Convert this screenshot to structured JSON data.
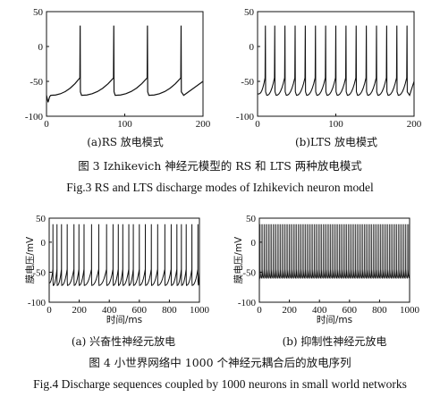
{
  "figure3": {
    "caption_cn": "图 3 Izhikevich 神经元模型的 RS 和 LTS 两种放电模式",
    "caption_en": "Fig.3 RS and LTS discharge modes of Izhikevich neuron model"
  },
  "figure4": {
    "caption_cn": "图 4 小世界网络中 1000 个神经元耦合后的放电序列",
    "caption_en": "Fig.4 Discharge sequences coupled by 1000 neurons in small world networks"
  },
  "chart_data": [
    {
      "id": "rs",
      "type": "line",
      "subtitle": "(a)RS 放电模式",
      "xlabel": "",
      "ylabel": "",
      "xlim": [
        0,
        200
      ],
      "ylim": [
        -100,
        50
      ],
      "xticks": [
        "0",
        "100",
        "200"
      ],
      "yticks": [
        "50",
        "0",
        "-50",
        "-100"
      ],
      "xtick_values": [
        0,
        100,
        200
      ],
      "ytick_values": [
        50,
        0,
        -50,
        -100
      ],
      "spike_times": [
        43,
        86,
        129,
        172
      ],
      "spike_peak": 30,
      "reset_value": -65,
      "rest_value": -70,
      "grid": false
    },
    {
      "id": "lts",
      "type": "line",
      "subtitle": "(b)LTS 放电模式",
      "xlabel": "",
      "ylabel": "",
      "xlim": [
        0,
        200
      ],
      "ylim": [
        -100,
        50
      ],
      "xticks": [
        "0",
        "100",
        "200"
      ],
      "yticks": [
        "50",
        "0",
        "-50",
        "-100"
      ],
      "xtick_values": [
        0,
        100,
        200
      ],
      "ytick_values": [
        50,
        0,
        -50,
        -100
      ],
      "spike_times": [
        10,
        22,
        35,
        48,
        61,
        74,
        87,
        100,
        113,
        126,
        139,
        152,
        165,
        178,
        191
      ],
      "spike_peak": 30,
      "reset_value": -65,
      "rest_value": -70,
      "grid": false
    },
    {
      "id": "exc",
      "type": "line",
      "subtitle": "(a) 兴奋性神经元放电",
      "xlabel": "时间/ms",
      "ylabel": "膜电压/mV",
      "xlim": [
        0,
        1000
      ],
      "ylim": [
        -100,
        40
      ],
      "xticks": [
        "0",
        "200",
        "400",
        "600",
        "800",
        "1000"
      ],
      "yticks": [
        "50",
        "0",
        "-50",
        "-100"
      ],
      "xtick_values": [
        0,
        200,
        400,
        600,
        800,
        1000
      ],
      "ytick_values": [
        50,
        0,
        -50,
        -100
      ],
      "spike_times": [
        25,
        52,
        82,
        120,
        165,
        198,
        232,
        282,
        330,
        382,
        425,
        460,
        490,
        530,
        560,
        600,
        640,
        680,
        722,
        770,
        812,
        850,
        880,
        912,
        950,
        990
      ],
      "spike_peak": 30,
      "reset_value": -65,
      "rest_value": -72,
      "grid": false
    },
    {
      "id": "inh",
      "type": "line",
      "subtitle": "(b) 抑制性神经元放电",
      "xlabel": "时间/ms",
      "ylabel": "膜电压/mV",
      "xlim": [
        0,
        1000
      ],
      "ylim": [
        -100,
        40
      ],
      "xticks": [
        "0",
        "200",
        "400",
        "600",
        "800",
        "1000"
      ],
      "yticks": [
        "50",
        "0",
        "-50",
        "-100"
      ],
      "xtick_values": [
        0,
        200,
        400,
        600,
        800,
        1000
      ],
      "ytick_values": [
        50,
        0,
        -50,
        -100
      ],
      "spike_interval": 9.8,
      "spike_start": 3,
      "spike_peak": 30,
      "reset_value": -55,
      "rest_value": -60,
      "grid": false
    }
  ]
}
